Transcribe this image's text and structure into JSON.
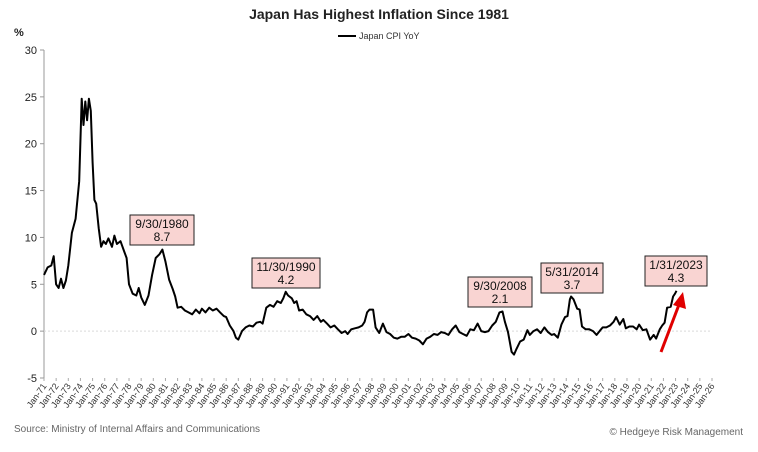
{
  "chart_data": {
    "type": "line",
    "title": "Japan Has Highest Inflation Since 1981",
    "ylabel": "%",
    "ylim": [
      -5,
      30
    ],
    "yticks": [
      "30",
      "25",
      "20",
      "15",
      "10",
      "5",
      "0",
      "-5"
    ],
    "yticks_values": [
      30,
      25,
      20,
      15,
      10,
      5,
      0,
      -5
    ],
    "xlim": [
      1971.0,
      2026.0
    ],
    "grid": "horizontal zero line dashed",
    "legend": "top-center",
    "xtick_labels": [
      "Jan-71",
      "Jan-72",
      "Jan-73",
      "Jan-74",
      "Jan-75",
      "Jan-76",
      "Jan-77",
      "Jan-78",
      "Jan-79",
      "Jan-80",
      "Jan-81",
      "Jan-82",
      "Jan-83",
      "Jan-84",
      "Jan-85",
      "Jan-86",
      "Jan-87",
      "Jan-88",
      "Jan-89",
      "Jan-90",
      "Jan-91",
      "Jan-92",
      "Jan-93",
      "Jan-94",
      "Jan-95",
      "Jan-96",
      "Jan-97",
      "Jan-98",
      "Jan-99",
      "Jan-00",
      "Jan-01",
      "Jan-02",
      "Jan-03",
      "Jan-04",
      "Jan-05",
      "Jan-06",
      "Jan-07",
      "Jan-08",
      "Jan-09",
      "Jan-10",
      "Jan-11",
      "Jan-12",
      "Jan-13",
      "Jan-14",
      "Jan-15",
      "Jan-16",
      "Jan-17",
      "Jan-18",
      "Jan-19",
      "Jan-20",
      "Jan-21",
      "Jan-22",
      "Jan-23",
      "Jan-24",
      "Jan-25",
      "Jan-26"
    ],
    "series": [
      {
        "name": "Japan CPI YoY",
        "color": "#000000",
        "points": [
          [
            1971.0,
            6.0
          ],
          [
            1971.3,
            6.8
          ],
          [
            1971.6,
            7.0
          ],
          [
            1971.8,
            8.0
          ],
          [
            1972.0,
            5.0
          ],
          [
            1972.2,
            4.6
          ],
          [
            1972.4,
            5.6
          ],
          [
            1972.6,
            4.6
          ],
          [
            1972.8,
            5.4
          ],
          [
            1973.0,
            7.0
          ],
          [
            1973.3,
            10.5
          ],
          [
            1973.6,
            12.0
          ],
          [
            1973.9,
            16.0
          ],
          [
            1974.1,
            24.8
          ],
          [
            1974.25,
            22.0
          ],
          [
            1974.4,
            24.5
          ],
          [
            1974.55,
            22.5
          ],
          [
            1974.7,
            24.8
          ],
          [
            1974.85,
            23.5
          ],
          [
            1975.0,
            18.0
          ],
          [
            1975.15,
            14.0
          ],
          [
            1975.3,
            13.6
          ],
          [
            1975.5,
            11.0
          ],
          [
            1975.7,
            9.0
          ],
          [
            1975.9,
            9.6
          ],
          [
            1976.1,
            9.3
          ],
          [
            1976.3,
            9.9
          ],
          [
            1976.6,
            9.0
          ],
          [
            1976.8,
            10.2
          ],
          [
            1977.0,
            9.3
          ],
          [
            1977.3,
            9.6
          ],
          [
            1977.6,
            8.5
          ],
          [
            1977.8,
            7.8
          ],
          [
            1978.0,
            5.0
          ],
          [
            1978.3,
            4.0
          ],
          [
            1978.6,
            3.8
          ],
          [
            1978.8,
            4.6
          ],
          [
            1979.0,
            3.6
          ],
          [
            1979.3,
            2.8
          ],
          [
            1979.6,
            3.8
          ],
          [
            1979.9,
            6.0
          ],
          [
            1980.2,
            7.8
          ],
          [
            1980.5,
            8.2
          ],
          [
            1980.75,
            8.7
          ],
          [
            1981.0,
            7.4
          ],
          [
            1981.3,
            5.5
          ],
          [
            1981.6,
            4.5
          ],
          [
            1981.8,
            3.7
          ],
          [
            1982.0,
            2.5
          ],
          [
            1982.3,
            2.6
          ],
          [
            1982.6,
            2.2
          ],
          [
            1982.9,
            2.0
          ],
          [
            1983.2,
            1.8
          ],
          [
            1983.5,
            2.3
          ],
          [
            1983.8,
            1.9
          ],
          [
            1984.0,
            2.4
          ],
          [
            1984.3,
            2.0
          ],
          [
            1984.6,
            2.5
          ],
          [
            1984.9,
            2.2
          ],
          [
            1985.2,
            2.4
          ],
          [
            1985.5,
            2.0
          ],
          [
            1985.8,
            1.6
          ],
          [
            1986.0,
            1.5
          ],
          [
            1986.3,
            0.6
          ],
          [
            1986.6,
            0.0
          ],
          [
            1986.8,
            -0.7
          ],
          [
            1987.0,
            -0.9
          ],
          [
            1987.3,
            0.0
          ],
          [
            1987.6,
            0.4
          ],
          [
            1987.9,
            0.6
          ],
          [
            1988.2,
            0.5
          ],
          [
            1988.5,
            0.9
          ],
          [
            1988.8,
            1.0
          ],
          [
            1989.0,
            0.8
          ],
          [
            1989.3,
            2.5
          ],
          [
            1989.6,
            2.8
          ],
          [
            1989.9,
            2.6
          ],
          [
            1990.2,
            3.2
          ],
          [
            1990.5,
            3.0
          ],
          [
            1990.7,
            3.5
          ],
          [
            1990.9,
            4.2
          ],
          [
            1991.1,
            3.8
          ],
          [
            1991.4,
            3.5
          ],
          [
            1991.6,
            3.0
          ],
          [
            1991.8,
            3.2
          ],
          [
            1992.0,
            2.2
          ],
          [
            1992.3,
            2.3
          ],
          [
            1992.6,
            1.8
          ],
          [
            1992.9,
            1.6
          ],
          [
            1993.2,
            1.2
          ],
          [
            1993.5,
            1.6
          ],
          [
            1993.8,
            1.0
          ],
          [
            1994.0,
            1.2
          ],
          [
            1994.3,
            0.8
          ],
          [
            1994.6,
            0.4
          ],
          [
            1994.9,
            0.6
          ],
          [
            1995.2,
            0.2
          ],
          [
            1995.5,
            -0.2
          ],
          [
            1995.8,
            0.0
          ],
          [
            1996.0,
            -0.3
          ],
          [
            1996.3,
            0.2
          ],
          [
            1996.6,
            0.3
          ],
          [
            1996.9,
            0.4
          ],
          [
            1997.2,
            0.6
          ],
          [
            1997.4,
            1.0
          ],
          [
            1997.6,
            2.0
          ],
          [
            1997.8,
            2.3
          ],
          [
            1998.1,
            2.3
          ],
          [
            1998.3,
            0.4
          ],
          [
            1998.6,
            -0.2
          ],
          [
            1998.9,
            0.8
          ],
          [
            1999.2,
            -0.1
          ],
          [
            1999.5,
            -0.3
          ],
          [
            1999.8,
            -0.7
          ],
          [
            2000.1,
            -0.8
          ],
          [
            2000.4,
            -0.6
          ],
          [
            2000.7,
            -0.6
          ],
          [
            2001.0,
            -0.3
          ],
          [
            2001.3,
            -0.7
          ],
          [
            2001.6,
            -0.8
          ],
          [
            2001.9,
            -1.0
          ],
          [
            2002.2,
            -1.4
          ],
          [
            2002.5,
            -0.8
          ],
          [
            2002.8,
            -0.6
          ],
          [
            2003.1,
            -0.3
          ],
          [
            2003.4,
            -0.4
          ],
          [
            2003.7,
            -0.1
          ],
          [
            2004.0,
            -0.2
          ],
          [
            2004.3,
            -0.4
          ],
          [
            2004.6,
            0.2
          ],
          [
            2004.9,
            0.6
          ],
          [
            2005.2,
            -0.1
          ],
          [
            2005.5,
            -0.3
          ],
          [
            2005.8,
            -0.5
          ],
          [
            2006.1,
            0.2
          ],
          [
            2006.4,
            0.1
          ],
          [
            2006.7,
            0.8
          ],
          [
            2007.0,
            0.0
          ],
          [
            2007.3,
            -0.1
          ],
          [
            2007.6,
            0.0
          ],
          [
            2007.9,
            0.6
          ],
          [
            2008.2,
            1.0
          ],
          [
            2008.5,
            2.0
          ],
          [
            2008.75,
            2.1
          ],
          [
            2008.95,
            1.0
          ],
          [
            2009.2,
            -0.1
          ],
          [
            2009.5,
            -2.2
          ],
          [
            2009.7,
            -2.5
          ],
          [
            2009.9,
            -1.9
          ],
          [
            2010.2,
            -1.1
          ],
          [
            2010.5,
            -0.9
          ],
          [
            2010.8,
            0.1
          ],
          [
            2011.0,
            -0.4
          ],
          [
            2011.3,
            0.0
          ],
          [
            2011.6,
            0.2
          ],
          [
            2011.9,
            -0.2
          ],
          [
            2012.2,
            0.4
          ],
          [
            2012.5,
            -0.1
          ],
          [
            2012.8,
            -0.4
          ],
          [
            2013.0,
            -0.3
          ],
          [
            2013.3,
            -0.7
          ],
          [
            2013.6,
            0.7
          ],
          [
            2013.9,
            1.5
          ],
          [
            2014.1,
            1.6
          ],
          [
            2014.3,
            3.4
          ],
          [
            2014.4,
            3.7
          ],
          [
            2014.6,
            3.4
          ],
          [
            2014.9,
            2.4
          ],
          [
            2015.1,
            2.3
          ],
          [
            2015.3,
            0.5
          ],
          [
            2015.6,
            0.2
          ],
          [
            2015.9,
            0.2
          ],
          [
            2016.2,
            0.0
          ],
          [
            2016.5,
            -0.4
          ],
          [
            2016.8,
            0.1
          ],
          [
            2017.0,
            0.4
          ],
          [
            2017.3,
            0.4
          ],
          [
            2017.6,
            0.6
          ],
          [
            2017.9,
            1.0
          ],
          [
            2018.1,
            1.5
          ],
          [
            2018.4,
            0.7
          ],
          [
            2018.7,
            1.3
          ],
          [
            2018.9,
            0.3
          ],
          [
            2019.2,
            0.5
          ],
          [
            2019.5,
            0.5
          ],
          [
            2019.8,
            0.2
          ],
          [
            2020.0,
            0.7
          ],
          [
            2020.3,
            0.1
          ],
          [
            2020.6,
            0.2
          ],
          [
            2020.9,
            -0.9
          ],
          [
            2021.2,
            -0.4
          ],
          [
            2021.4,
            -0.8
          ],
          [
            2021.7,
            0.2
          ],
          [
            2021.9,
            0.6
          ],
          [
            2022.1,
            0.9
          ],
          [
            2022.3,
            2.5
          ],
          [
            2022.6,
            2.6
          ],
          [
            2022.8,
            3.7
          ],
          [
            2022.95,
            4.0
          ],
          [
            2023.08,
            4.3
          ]
        ]
      }
    ],
    "annotations": [
      {
        "date_label": "9/30/1980",
        "value_label": "8.7"
      },
      {
        "date_label": "11/30/1990",
        "value_label": "4.2"
      },
      {
        "date_label": "9/30/2008",
        "value_label": "2.1"
      },
      {
        "date_label": "5/31/2014",
        "value_label": "3.7"
      },
      {
        "date_label": "1/31/2023",
        "value_label": "4.3"
      }
    ],
    "arrow": {
      "color": "#e00000"
    }
  },
  "source": "Source: Ministry of Internal Affairs and Communications",
  "credit": "© Hedgeye Risk Management"
}
